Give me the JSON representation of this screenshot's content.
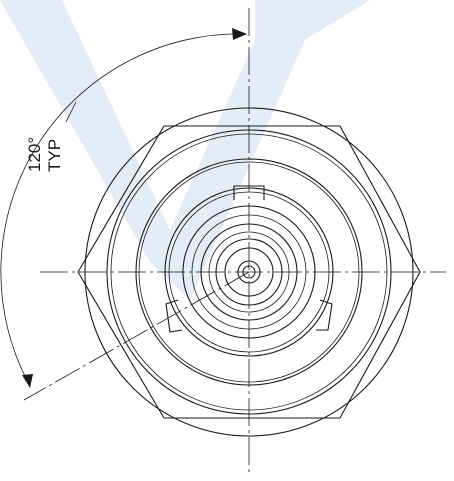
{
  "annotation": {
    "angle": "120°",
    "typ": "TYP"
  },
  "colors": {
    "line": "#1a1a1a",
    "watermark": "#e3edf7",
    "background": "#ffffff"
  }
}
